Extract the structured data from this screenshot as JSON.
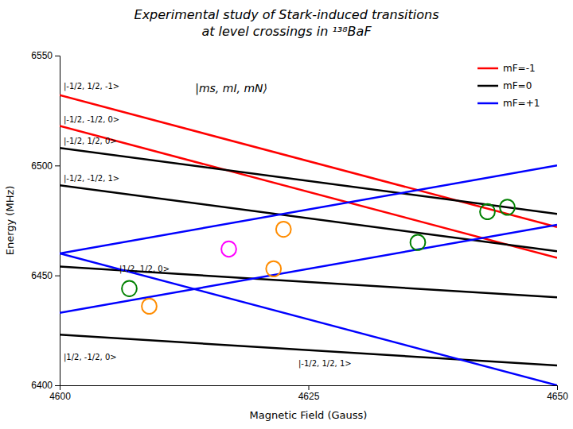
{
  "chart_data": {
    "type": "line",
    "title": "Experimental study of Stark-induced transitions\nat level crossings in ¹³⁸BaF",
    "x_label": "Magnetic Field (Gauss)",
    "y_label": "Energy (MHz)",
    "x": [
      4600,
      4650
    ],
    "series": [
      {
        "name": "mF=-1",
        "color": "red",
        "values": [
          6532,
          6472
        ]
      },
      {
        "color": "red",
        "values": [
          6518,
          6458
        ]
      },
      {
        "name": "mF=0",
        "color": "black",
        "values": [
          6508,
          6478
        ]
      },
      {
        "color": "black",
        "values": [
          6491,
          6461
        ]
      },
      {
        "color": "black",
        "values": [
          6454,
          6440
        ]
      },
      {
        "color": "black",
        "values": [
          6423,
          6409
        ]
      },
      {
        "name": "mF=+1",
        "color": "blue",
        "values": [
          6460,
          6500
        ]
      },
      {
        "color": "blue",
        "values": [
          6433,
          6473
        ]
      },
      {
        "color": "blue",
        "values": [
          6460,
          6400
        ]
      }
    ],
    "xlim": [
      4600,
      4650
    ],
    "xticks": [
      4600,
      4625,
      4650
    ],
    "ylim": [
      6400,
      6550
    ],
    "yticks": [
      6400,
      6450,
      6500,
      6550
    ],
    "legend": "upper right",
    "annotations": [
      {
        "text": "|ms, mI, mN⟩"
      },
      {
        "text": "|-1/2, 1/2, -1>",
        "x": 4600.4,
        "y": 6534
      },
      {
        "text": "|-1/2, -1/2, 0>",
        "x": 4600.4,
        "y": 6519
      },
      {
        "text": "|-1/2, 1/2, 0>",
        "x": 4600.4,
        "y": 6509
      },
      {
        "text": "|-1/2, -1/2, 1>",
        "x": 4600.4,
        "y": 6492
      },
      {
        "text": "|1/2, 1/2, 0>",
        "x": 4606.0,
        "y": 6451
      },
      {
        "text": "|1/2, -1/2, 0>",
        "x": 4600.4,
        "y": 6411
      },
      {
        "text": "|-1/2, 1/2, 1>",
        "x": 4624.0,
        "y": 6408
      }
    ],
    "circles": [
      {
        "x": 4607.0,
        "y": 6444,
        "color": "green",
        "width": 1.5,
        "height": 7
      },
      {
        "x": 4609.0,
        "y": 6436,
        "color": "darkorange",
        "width": 1.5,
        "height": 7
      },
      {
        "x": 4617.0,
        "y": 6462,
        "color": "magenta",
        "width": 1.5,
        "height": 7
      },
      {
        "x": 4621.5,
        "y": 6453,
        "color": "darkorange",
        "width": 1.5,
        "height": 7
      },
      {
        "x": 4622.5,
        "y": 6471,
        "color": "darkorange",
        "width": 1.5,
        "height": 7
      },
      {
        "x": 4636.0,
        "y": 6465,
        "color": "green",
        "width": 1.5,
        "height": 7
      },
      {
        "x": 4643.0,
        "y": 6479,
        "color": "green",
        "width": 1.5,
        "height": 7
      },
      {
        "x": 4645.0,
        "y": 6481,
        "color": "green",
        "width": 1.5,
        "height": 7
      }
    ]
  }
}
